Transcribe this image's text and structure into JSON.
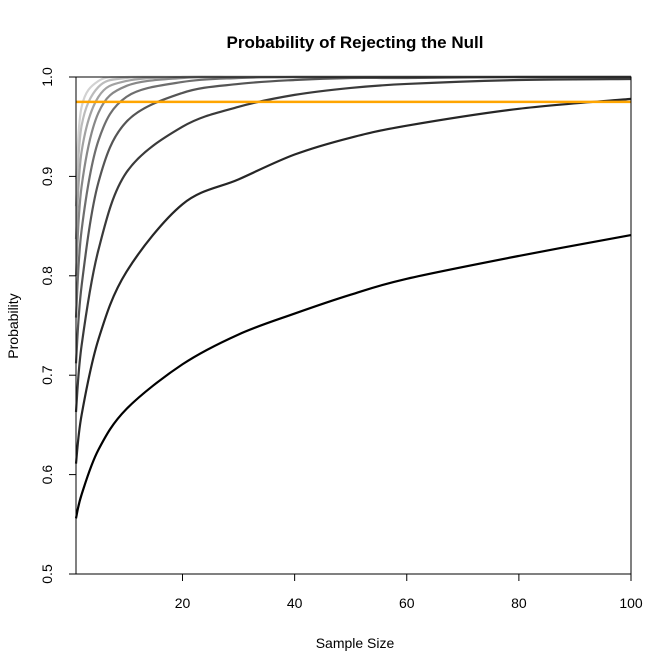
{
  "chart_data": {
    "type": "line",
    "title": "Probability of Rejecting the Null",
    "xlabel": "Sample Size",
    "ylabel": "Probability",
    "xlim": [
      1,
      100
    ],
    "ylim": [
      0.5,
      1.0
    ],
    "x_ticks": [
      20,
      40,
      60,
      80,
      100
    ],
    "y_ticks": [
      0.5,
      0.6,
      0.7,
      0.8,
      0.9,
      1.0
    ],
    "y_tick_labels": [
      "0.5",
      "0.6",
      "0.7",
      "0.8",
      "0.9",
      "1.0"
    ],
    "grid": false,
    "legend": "none",
    "reference_line": {
      "y": 0.975,
      "color": "#FFA500"
    },
    "x": [
      1,
      2,
      5,
      10,
      20,
      30,
      40,
      50,
      60,
      80,
      100
    ],
    "series": [
      {
        "color": "#000000",
        "values": [
          0.556,
          0.58,
          0.625,
          0.666,
          0.711,
          0.741,
          0.762,
          0.781,
          0.797,
          0.82,
          0.841
        ]
      },
      {
        "color": "#262626",
        "values": [
          0.611,
          0.66,
          0.736,
          0.804,
          0.872,
          0.897,
          0.922,
          0.939,
          0.951,
          0.968,
          0.978
        ]
      },
      {
        "color": "#3a3a3a",
        "values": [
          0.663,
          0.73,
          0.826,
          0.904,
          0.95,
          0.97,
          0.982,
          0.989,
          0.993,
          0.997,
          0.998
        ]
      },
      {
        "color": "#555555",
        "values": [
          0.712,
          0.79,
          0.894,
          0.955,
          0.984,
          0.993,
          0.997,
          0.999,
          0.999,
          1.0,
          1.0
        ]
      },
      {
        "color": "#6e6e6e",
        "values": [
          0.758,
          0.846,
          0.936,
          0.98,
          0.995,
          0.999,
          1.0,
          1.0,
          1.0,
          1.0,
          1.0
        ]
      },
      {
        "color": "#888888",
        "values": [
          0.8,
          0.89,
          0.964,
          0.991,
          0.999,
          1.0,
          1.0,
          1.0,
          1.0,
          1.0,
          1.0
        ]
      },
      {
        "color": "#a2a2a2",
        "values": [
          0.837,
          0.925,
          0.98,
          0.996,
          1.0,
          1.0,
          1.0,
          1.0,
          1.0,
          1.0,
          1.0
        ]
      },
      {
        "color": "#bcbcbc",
        "values": [
          0.87,
          0.951,
          0.99,
          0.999,
          1.0,
          1.0,
          1.0,
          1.0,
          1.0,
          1.0,
          1.0
        ]
      },
      {
        "color": "#d2d2d2",
        "values": [
          0.897,
          0.97,
          0.996,
          1.0,
          1.0,
          1.0,
          1.0,
          1.0,
          1.0,
          1.0,
          1.0
        ]
      }
    ]
  }
}
